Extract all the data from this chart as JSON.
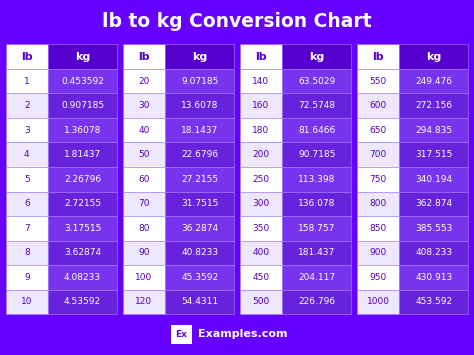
{
  "title": "lb to kg Conversion Chart",
  "bg_color": "#6600FF",
  "header_lb_bg": "#FFFFFF",
  "header_kg_bg": "#5500CC",
  "row_lb_light": "#FFFFFF",
  "row_lb_dark": "#EEE8FF",
  "row_kg_light": "#7733EE",
  "row_kg_dark": "#6622DD",
  "header_lb_text": "#5500CC",
  "header_kg_text": "#FFFFFF",
  "cell_lb_text": "#5500BB",
  "cell_kg_text": "#FFFFFF",
  "title_color": "#FFFFFF",
  "tables": [
    {
      "headers": [
        "lb",
        "kg"
      ],
      "rows": [
        [
          "1",
          "0.453592"
        ],
        [
          "2",
          "0.907185"
        ],
        [
          "3",
          "1.36078"
        ],
        [
          "4",
          "1.81437"
        ],
        [
          "5",
          "2.26796"
        ],
        [
          "6",
          "2.72155"
        ],
        [
          "7",
          "3.17515"
        ],
        [
          "8",
          "3.62874"
        ],
        [
          "9",
          "4.08233"
        ],
        [
          "10",
          "4.53592"
        ]
      ]
    },
    {
      "headers": [
        "lb",
        "kg"
      ],
      "rows": [
        [
          "20",
          "9.07185"
        ],
        [
          "30",
          "13.6078"
        ],
        [
          "40",
          "18.1437"
        ],
        [
          "50",
          "22.6796"
        ],
        [
          "60",
          "27.2155"
        ],
        [
          "70",
          "31.7515"
        ],
        [
          "80",
          "36.2874"
        ],
        [
          "90",
          "40.8233"
        ],
        [
          "100",
          "45.3592"
        ],
        [
          "120",
          "54.4311"
        ]
      ]
    },
    {
      "headers": [
        "lb",
        "kg"
      ],
      "rows": [
        [
          "140",
          "63.5029"
        ],
        [
          "160",
          "72.5748"
        ],
        [
          "180",
          "81.6466"
        ],
        [
          "200",
          "90.7185"
        ],
        [
          "250",
          "113.398"
        ],
        [
          "300",
          "136.078"
        ],
        [
          "350",
          "158.757"
        ],
        [
          "400",
          "181.437"
        ],
        [
          "450",
          "204.117"
        ],
        [
          "500",
          "226.796"
        ]
      ]
    },
    {
      "headers": [
        "lb",
        "kg"
      ],
      "rows": [
        [
          "550",
          "249.476"
        ],
        [
          "600",
          "272.156"
        ],
        [
          "650",
          "294.835"
        ],
        [
          "700",
          "317.515"
        ],
        [
          "750",
          "340.194"
        ],
        [
          "800",
          "362.874"
        ],
        [
          "850",
          "385.553"
        ],
        [
          "900",
          "408.233"
        ],
        [
          "950",
          "430.913"
        ],
        [
          "1000",
          "453.592"
        ]
      ]
    }
  ],
  "footer_text": "Examples.com",
  "footer_box_text": "Ex"
}
